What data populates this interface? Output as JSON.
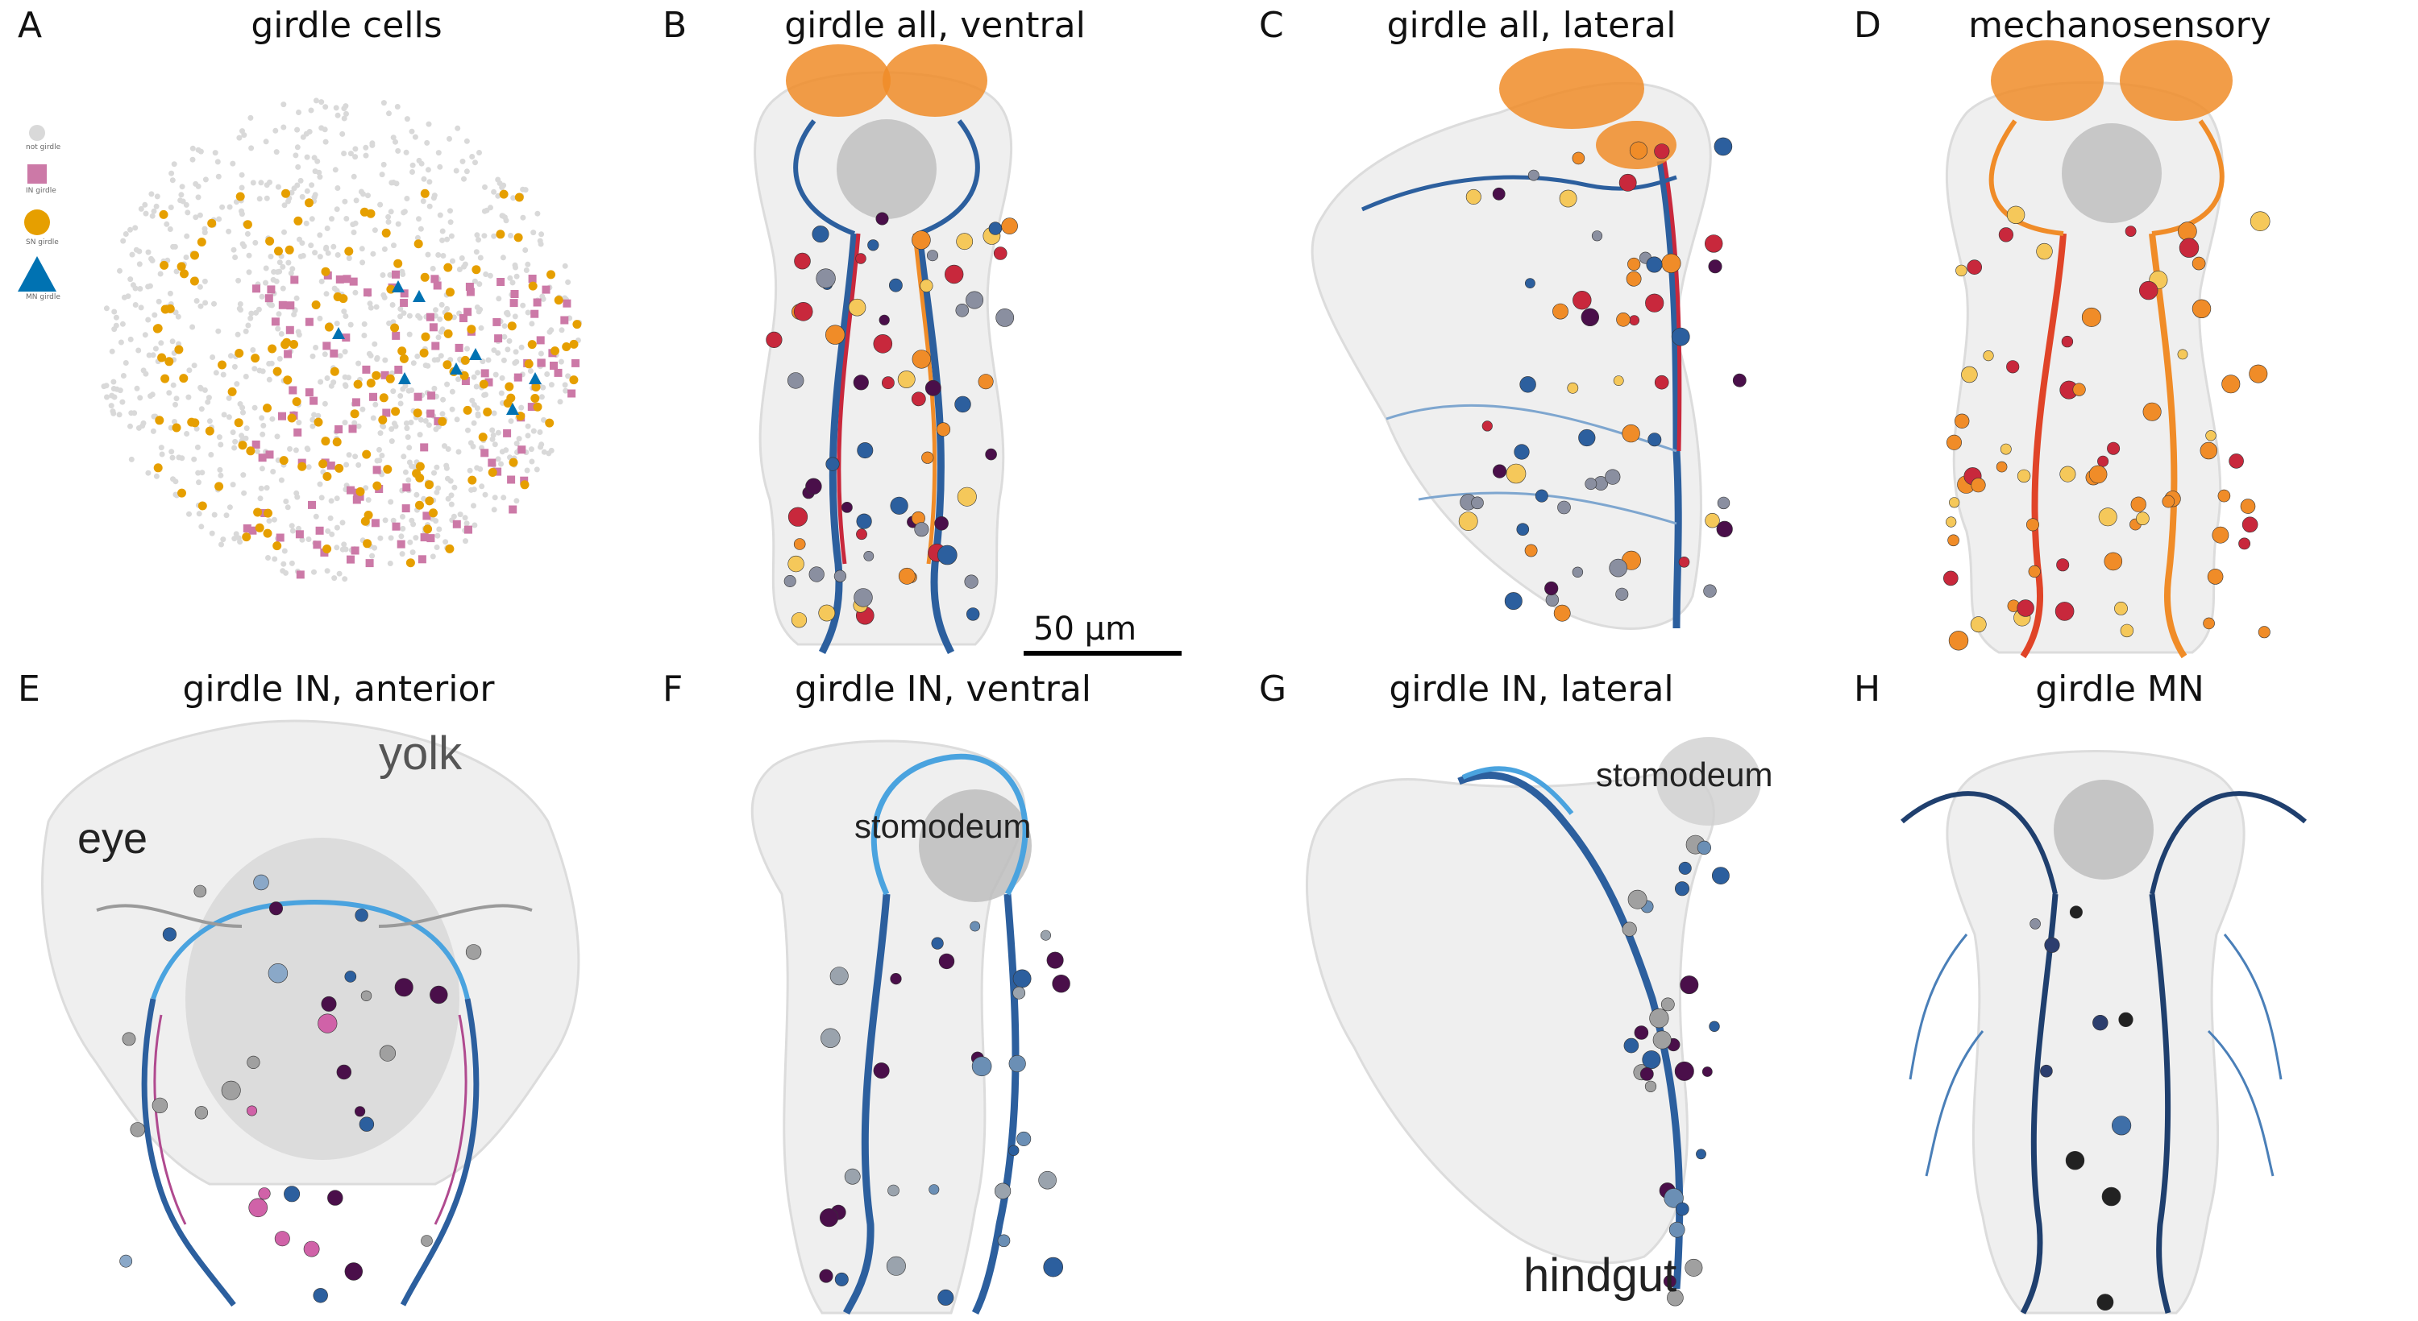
{
  "panels": {
    "A": {
      "letter": "A",
      "title": "girdle cells"
    },
    "B": {
      "letter": "B",
      "title": "girdle all, ventral"
    },
    "C": {
      "letter": "C",
      "title": "girdle all, lateral"
    },
    "D": {
      "letter": "D",
      "title": "mechanosensory"
    },
    "E": {
      "letter": "E",
      "title": "girdle IN, anterior",
      "labels": {
        "yolk": "yolk",
        "eye": "eye"
      }
    },
    "F": {
      "letter": "F",
      "title": "girdle IN, ventral",
      "labels": {
        "stomodeum": "stomodeum"
      }
    },
    "G": {
      "letter": "G",
      "title": "girdle IN, lateral",
      "labels": {
        "stomodeum": "stomodeum",
        "hindgut": "hindgut"
      }
    },
    "H": {
      "letter": "H",
      "title": "girdle MN"
    }
  },
  "legend": {
    "items": [
      {
        "label": "not girdle",
        "color": "#d9d9d9",
        "shape": "circle"
      },
      {
        "label": "IN girdle",
        "color": "#cc79a7",
        "shape": "square"
      },
      {
        "label": "SN girdle",
        "color": "#e69f00",
        "shape": "circle"
      },
      {
        "label": "MN girdle",
        "color": "#0072b2",
        "shape": "triangle"
      }
    ]
  },
  "scale_bar": {
    "label": "50 μm"
  },
  "colors": {
    "not_girdle": "#d9d9d9",
    "in_girdle": "#cc79a7",
    "sn_girdle": "#e69f00",
    "mn_girdle": "#0072b2",
    "body_outline": "#e6e6e6",
    "neuron_red": "#c8283c",
    "neuron_orange": "#f08c28",
    "neuron_yellow": "#f5c85a",
    "neuron_blue": "#2c5f9e",
    "neuron_lightblue": "#4aa3df",
    "neuron_darkpurple": "#4a0f4a"
  }
}
